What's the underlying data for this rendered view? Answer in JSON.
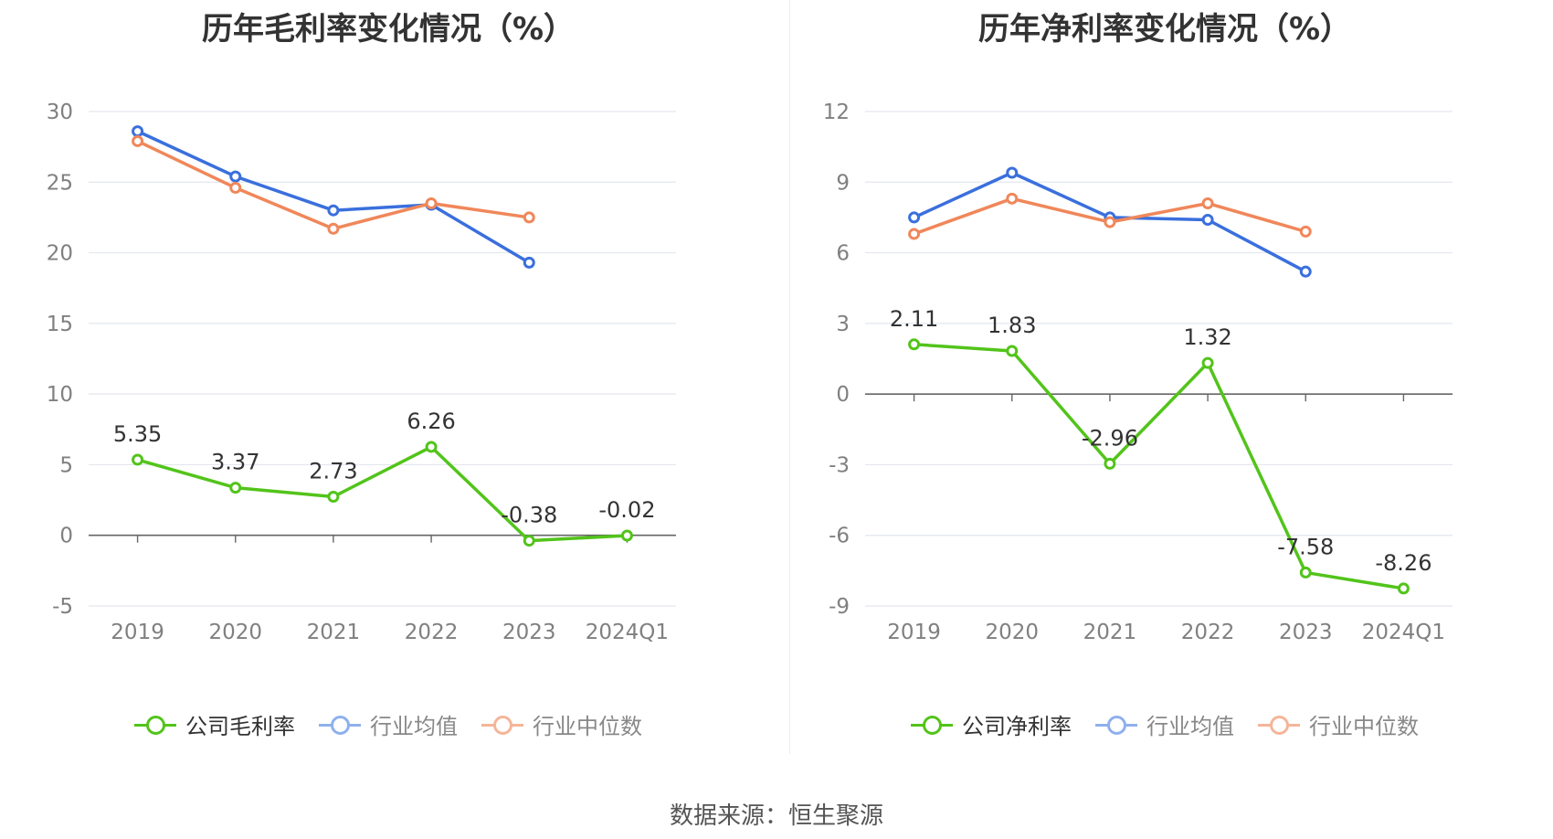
{
  "source_label": "数据来源：恒生聚源",
  "colors": {
    "company": "#52c41a",
    "avg": "#3a6fdd",
    "median": "#f0875a",
    "avg_legend": "#8fb0ee",
    "median_legend": "#f5b598",
    "grid": "#e3e7ef",
    "axis": "#666666",
    "tick_text": "#808080"
  },
  "chart_data": [
    {
      "type": "line",
      "title": "历年毛利率变化情况（%）",
      "categories": [
        "2019",
        "2020",
        "2021",
        "2022",
        "2023",
        "2024Q1"
      ],
      "ylim": [
        -5,
        30
      ],
      "yticks": [
        -5,
        0,
        5,
        10,
        15,
        20,
        25,
        30
      ],
      "grid": true,
      "legend_position": "bottom",
      "series": [
        {
          "name": "公司毛利率",
          "color_key": "company",
          "labels": true,
          "values": [
            5.35,
            3.37,
            2.73,
            6.26,
            -0.38,
            -0.02
          ],
          "value_labels": [
            "5.35",
            "3.37",
            "2.73",
            "6.26",
            "-0.38",
            "-0.02"
          ]
        },
        {
          "name": "行业均值",
          "color_key": "avg",
          "values": [
            28.6,
            25.4,
            23.0,
            23.4,
            19.3,
            null
          ]
        },
        {
          "name": "行业中位数",
          "color_key": "median",
          "values": [
            27.9,
            24.6,
            21.7,
            23.5,
            22.5,
            null
          ]
        }
      ]
    },
    {
      "type": "line",
      "title": "历年净利率变化情况（%）",
      "categories": [
        "2019",
        "2020",
        "2021",
        "2022",
        "2023",
        "2024Q1"
      ],
      "ylim": [
        -9,
        12
      ],
      "yticks": [
        -9,
        -6,
        -3,
        0,
        3,
        6,
        9,
        12
      ],
      "grid": true,
      "legend_position": "bottom",
      "series": [
        {
          "name": "公司净利率",
          "color_key": "company",
          "labels": true,
          "values": [
            2.11,
            1.83,
            -2.96,
            1.32,
            -7.58,
            -8.26
          ],
          "value_labels": [
            "2.11",
            "1.83",
            "-2.96",
            "1.32",
            "-7.58",
            "-8.26"
          ]
        },
        {
          "name": "行业均值",
          "color_key": "avg",
          "values": [
            7.5,
            9.4,
            7.5,
            7.4,
            5.2,
            null
          ]
        },
        {
          "name": "行业中位数",
          "color_key": "median",
          "values": [
            6.8,
            8.3,
            7.3,
            8.1,
            6.9,
            null
          ]
        }
      ]
    }
  ]
}
